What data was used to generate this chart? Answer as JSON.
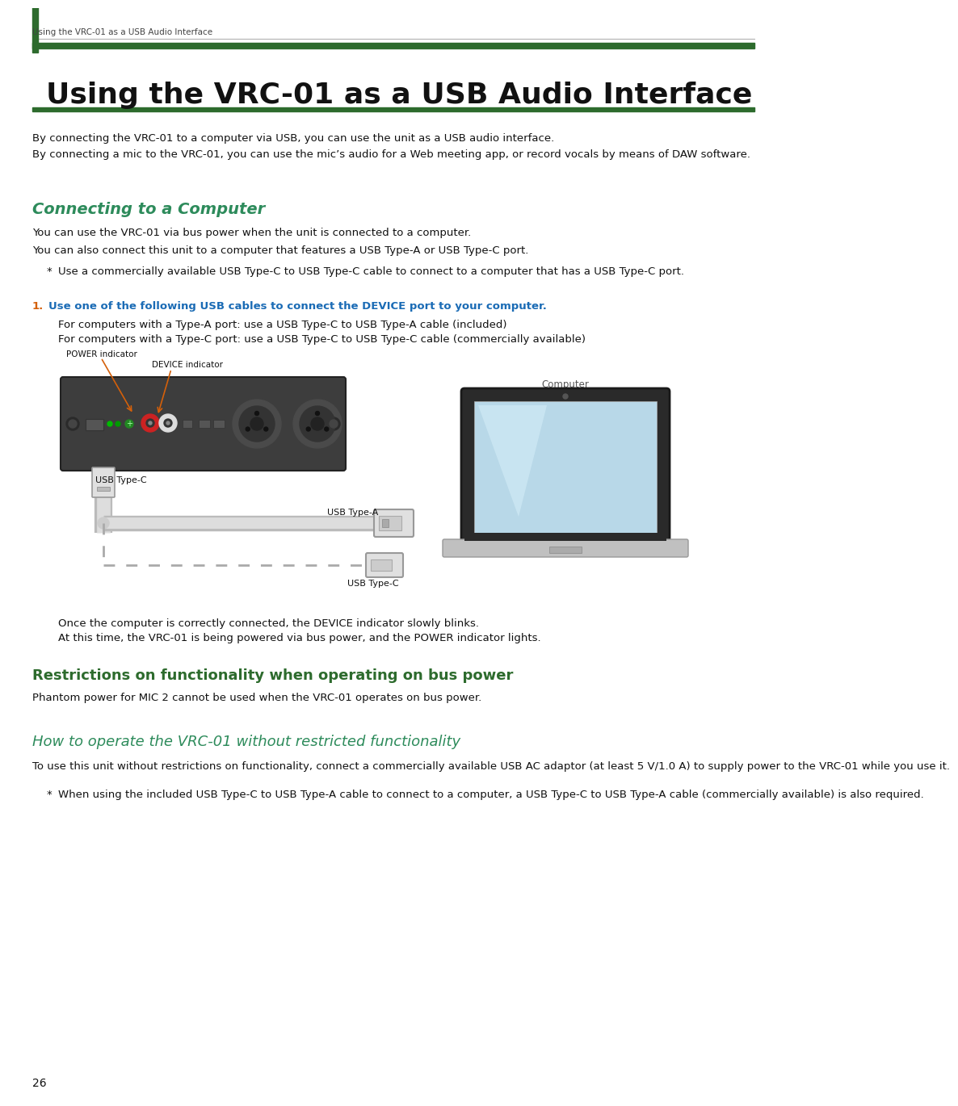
{
  "bg_color": "#ffffff",
  "title_text": "Using the VRC-01 as a USB Audio Interface",
  "breadcrumb_text": "Using the VRC-01 as a USB Audio Interface",
  "page_number": "26",
  "body_paragraphs": [
    "By connecting the VRC-01 to a computer via USB, you can use the unit as a USB audio interface.",
    "By connecting a mic to the VRC-01, you can use the mic’s audio for a Web meeting app, or record vocals by means of DAW software."
  ],
  "section1_title": "Connecting to a Computer",
  "section1_color": "#2d8b5b",
  "section1_paras": [
    "You can use the VRC-01 via bus power when the unit is connected to a computer.",
    "You can also connect this unit to a computer that features a USB Type-A or USB Type-C port."
  ],
  "section1_bullet": "Use a commercially available USB Type-C to USB Type-C cable to connect to a computer that has a USB Type-C port.",
  "step1_num": "1.",
  "step1_color": "#d4600a",
  "step1_text": "Use one of the following USB cables to connect the DEVICE port to your computer.",
  "step1_text_color": "#1a6bb5",
  "step1_sub1": "For computers with a Type-A port: use a USB Type-C to USB Type-A cable (included)",
  "step1_sub2": "For computers with a Type-C port: use a USB Type-C to USB Type-C cable (commercially available)",
  "label_power": "POWER indicator",
  "label_device": "DEVICE indicator",
  "label_usb_c_left": "USB Type-C",
  "label_usb_a": "USB Type-A",
  "label_usb_c_right": "USB Type-C",
  "label_computer": "Computer",
  "caption1": "Once the computer is correctly connected, the DEVICE indicator slowly blinks.",
  "caption2": "At this time, the VRC-01 is being powered via bus power, and the POWER indicator lights.",
  "section2_title": "Restrictions on functionality when operating on bus power",
  "section2_color": "#2d6b2d",
  "section2_para": "Phantom power for MIC 2 cannot be used when the VRC-01 operates on bus power.",
  "section3_title": "How to operate the VRC-01 without restricted functionality",
  "section3_color": "#2d8b5b",
  "section3_para": "To use this unit without restrictions on functionality, connect a commercially available USB AC adaptor (at least 5 V/1.0 A) to supply power to the VRC-01 while you use it.",
  "section3_bullet": "When using the included USB Type-C to USB Type-A cable to connect to a computer, a USB Type-C to USB Type-A cable (commercially available) is also required.",
  "green_bar": "#2d6b2d",
  "arrow_color": "#d4600a"
}
